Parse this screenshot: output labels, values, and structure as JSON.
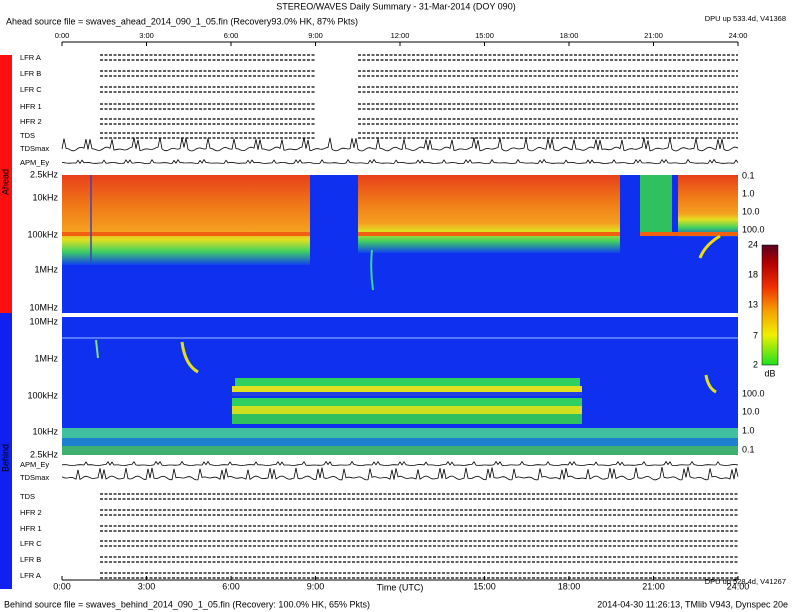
{
  "title": "STEREO/WAVES Daily Summary - 31-Mar-2014 (DOY 090)",
  "ahead_source": "Ahead source file = swaves_ahead_2014_090_1_05.fin (Recovery93.0% HK, 87% Pkts)",
  "behind_source": "Behind source file = swaves_behind_2014_090_1_05.fin (Recovery: 100.0% HK, 65% Pkts)",
  "footer_stamp": "2014-04-30 11:26:13, TMlib V943, Dynspec 20e",
  "dpu_ahead": "DPU up 533.4d, V41368",
  "dpu_behind": "DPU up 528.4d, V41267",
  "top_time_ticks": [
    "0:00",
    "3:00",
    "6:00",
    "9:00",
    "12:00",
    "15:00",
    "18:00",
    "21:00",
    "24:00"
  ],
  "bottom_time_ticks": [
    "0:00",
    "3:00",
    "6:00",
    "9:00",
    "15:00",
    "18:00",
    "21:00",
    "24:00"
  ],
  "x_label": "Time (UTC)",
  "ahead_side": "Ahead",
  "behind_side": "Behind",
  "ahead_panel_labels": [
    "LFR A",
    "LFR B",
    "LFR C",
    "HFR 1",
    "HFR 2",
    "TDS",
    "TDSmax",
    "APM_Ey"
  ],
  "behind_panel_labels": [
    "APM_Ey",
    "TDSmax",
    "TDS",
    "HFR 2",
    "HFR 1",
    "LFR C",
    "LFR B",
    "LFR A"
  ],
  "ahead_freq_labels": [
    "2.5kHz",
    "10kHz",
    "100kHz",
    "1MHz",
    "10MHz"
  ],
  "behind_freq_labels": [
    "10MHz",
    "1MHz",
    "100kHz",
    "10kHz",
    "2.5kHz"
  ],
  "right_scale_ahead": [
    "0.1",
    "1.0",
    "10.0",
    "100.0"
  ],
  "right_scale_behind": [
    "100.0",
    "10.0",
    "1.0",
    "0.1"
  ],
  "colorbar": {
    "ticks": [
      "24",
      "18",
      "13",
      "7",
      "2"
    ],
    "unit": "dB"
  }
}
